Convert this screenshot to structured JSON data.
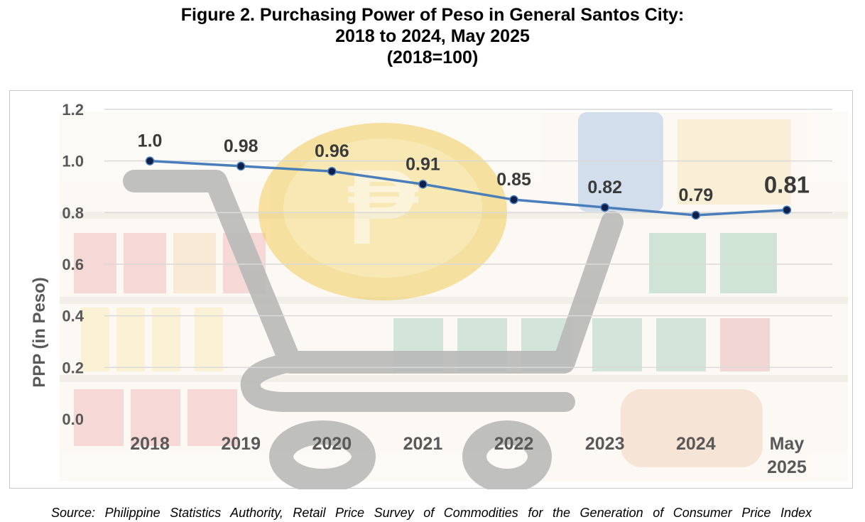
{
  "title_lines": [
    "Figure 2. Purchasing Power of Peso in General Santos City:",
    "2018 to 2024, May 2025",
    "(2018=100)"
  ],
  "source": "Source: Philippine Statistics Authority, Retail Price Survey of Commodities for the Generation of Consumer Price Index",
  "chart_data": {
    "type": "line",
    "categories": [
      [
        "2018"
      ],
      [
        "2019"
      ],
      [
        "2020"
      ],
      [
        "2021"
      ],
      [
        "2022"
      ],
      [
        "2023"
      ],
      [
        "2024"
      ],
      [
        "May",
        "2025"
      ]
    ],
    "values": [
      1.0,
      0.98,
      0.96,
      0.91,
      0.85,
      0.82,
      0.79,
      0.81
    ],
    "data_labels": [
      "1.0",
      "0.98",
      "0.96",
      "0.91",
      "0.85",
      "0.82",
      "0.79",
      "0.81"
    ],
    "ylabel": "PPP  (in Peso)",
    "ylim": [
      0,
      1.2
    ],
    "yticks": [
      0.0,
      0.2,
      0.4,
      0.6,
      0.8,
      1.0,
      1.2
    ],
    "ytick_labels": [
      "0.0",
      "0.2",
      "0.4",
      "0.6",
      "0.8",
      "1.0",
      "1.2"
    ],
    "grid": true,
    "legend": "none",
    "colors": {
      "line": "#4a7ebb",
      "marker": "#0f1f4a",
      "marker_edge": "#4a7ebb",
      "label": "#3a3a3a",
      "axis_text": "#595959",
      "grid": "#d9d9d9"
    },
    "background_icons": [
      "shopping-cart-icon",
      "peso-coin-icon",
      "grocery-shelf-icon"
    ]
  }
}
